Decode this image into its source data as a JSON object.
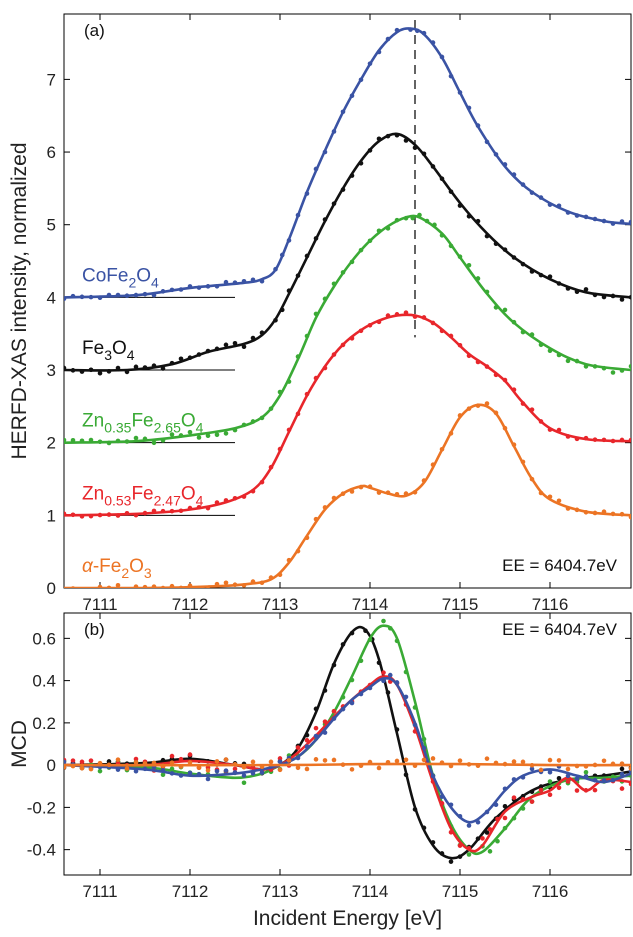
{
  "chart_data": [
    {
      "panel_label": "(a)",
      "type": "line",
      "ylabel": "HERFD-XAS intensity, normalized",
      "xlim": [
        7110.6,
        7116.9
      ],
      "ylim": [
        0,
        7.9
      ],
      "xticks": [
        7111,
        7112,
        7113,
        7114,
        7115,
        7116
      ],
      "yticks": [
        0,
        1,
        2,
        3,
        4,
        5,
        6,
        7
      ],
      "annotation": "EE = 6404.7eV",
      "vline_x": 7114.5,
      "grid": false,
      "series": [
        {
          "name_parts": [
            {
              "t": "CoFe"
            },
            {
              "t": "2",
              "sub": true
            },
            {
              "t": "O"
            },
            {
              "t": "4",
              "sub": true
            }
          ],
          "color": "#3a53a4",
          "offset": 4,
          "x": [
            7110.6,
            7111.4,
            7112.0,
            7112.6,
            7112.8,
            7112.95,
            7113.1,
            7113.3,
            7113.5,
            7113.7,
            7113.9,
            7114.1,
            7114.3,
            7114.45,
            7114.6,
            7114.8,
            7115.0,
            7115.2,
            7115.5,
            7115.8,
            7116.2,
            7116.6,
            7116.9
          ],
          "y": [
            4.0,
            4.03,
            4.13,
            4.2,
            4.25,
            4.38,
            4.8,
            5.45,
            6.02,
            6.55,
            7.0,
            7.4,
            7.65,
            7.7,
            7.62,
            7.3,
            6.82,
            6.35,
            5.8,
            5.45,
            5.18,
            5.05,
            5.01
          ]
        },
        {
          "name_parts": [
            {
              "t": "Fe"
            },
            {
              "t": "3",
              "sub": true
            },
            {
              "t": "O"
            },
            {
              "t": "4",
              "sub": true
            }
          ],
          "color": "#111111",
          "offset": 3,
          "x": [
            7110.6,
            7111.3,
            7111.8,
            7112.2,
            7112.6,
            7112.8,
            7112.95,
            7113.1,
            7113.3,
            7113.5,
            7113.7,
            7113.9,
            7114.1,
            7114.3,
            7114.5,
            7114.7,
            7115.0,
            7115.3,
            7115.6,
            7116.0,
            7116.4,
            7116.9
          ],
          "y": [
            3.0,
            3.0,
            3.08,
            3.25,
            3.36,
            3.48,
            3.7,
            4.05,
            4.55,
            5.05,
            5.5,
            5.88,
            6.15,
            6.25,
            6.1,
            5.8,
            5.3,
            4.88,
            4.55,
            4.25,
            4.07,
            4.0
          ]
        },
        {
          "name_parts": [
            {
              "t": "Zn"
            },
            {
              "t": "0.35",
              "sub": true
            },
            {
              "t": "Fe"
            },
            {
              "t": "2.65",
              "sub": true
            },
            {
              "t": "O"
            },
            {
              "t": "4",
              "sub": true
            }
          ],
          "color": "#3aaa35",
          "offset": 2,
          "x": [
            7110.6,
            7111.4,
            7112.0,
            7112.5,
            7112.8,
            7113.0,
            7113.2,
            7113.4,
            7113.6,
            7113.8,
            7114.0,
            7114.2,
            7114.4,
            7114.55,
            7114.8,
            7115.0,
            7115.3,
            7115.6,
            7116.0,
            7116.4,
            7116.9
          ],
          "y": [
            2.0,
            2.02,
            2.1,
            2.2,
            2.35,
            2.65,
            3.15,
            3.72,
            4.15,
            4.5,
            4.78,
            4.98,
            5.1,
            5.1,
            4.88,
            4.55,
            4.05,
            3.65,
            3.3,
            3.08,
            3.0
          ]
        },
        {
          "name_parts": [
            {
              "t": "Zn"
            },
            {
              "t": "0.53",
              "sub": true
            },
            {
              "t": "Fe"
            },
            {
              "t": "2.47",
              "sub": true
            },
            {
              "t": "O"
            },
            {
              "t": "4",
              "sub": true
            }
          ],
          "color": "#e8262b",
          "offset": 1,
          "x": [
            7110.6,
            7111.4,
            7112.0,
            7112.4,
            7112.7,
            7112.9,
            7113.1,
            7113.3,
            7113.5,
            7113.7,
            7113.9,
            7114.1,
            7114.3,
            7114.5,
            7114.7,
            7114.9,
            7115.1,
            7115.3,
            7115.5,
            7115.7,
            7116.0,
            7116.4,
            7116.9
          ],
          "y": [
            1.0,
            1.02,
            1.08,
            1.18,
            1.35,
            1.65,
            2.15,
            2.65,
            3.05,
            3.35,
            3.55,
            3.68,
            3.75,
            3.75,
            3.65,
            3.45,
            3.22,
            3.05,
            2.85,
            2.55,
            2.2,
            2.05,
            2.02
          ]
        },
        {
          "name_parts": [
            {
              "t": "α-Fe",
              "italic_alpha": true
            },
            {
              "t": "2",
              "sub": true
            },
            {
              "t": "O"
            },
            {
              "t": "3",
              "sub": true
            }
          ],
          "color": "#ec7424",
          "offset": 0,
          "x": [
            7110.6,
            7111.5,
            7112.2,
            7112.6,
            7112.9,
            7113.1,
            7113.3,
            7113.5,
            7113.7,
            7113.9,
            7114.0,
            7114.2,
            7114.4,
            7114.6,
            7114.8,
            7115.0,
            7115.2,
            7115.4,
            7115.6,
            7115.8,
            7116.0,
            7116.4,
            7116.9
          ],
          "y": [
            0.0,
            0.0,
            0.02,
            0.05,
            0.12,
            0.35,
            0.72,
            1.08,
            1.3,
            1.4,
            1.38,
            1.3,
            1.27,
            1.45,
            1.9,
            2.35,
            2.52,
            2.4,
            1.95,
            1.5,
            1.22,
            1.05,
            1.0
          ]
        }
      ]
    },
    {
      "panel_label": "(b)",
      "type": "line",
      "xlabel": "Incident Energy [eV]",
      "ylabel": "MCD",
      "xlim": [
        7110.6,
        7116.9
      ],
      "ylim": [
        -0.52,
        0.72
      ],
      "xticks": [
        7111,
        7112,
        7113,
        7114,
        7115,
        7116
      ],
      "yticks": [
        -0.4,
        -0.2,
        0,
        0.2,
        0.4,
        0.6
      ],
      "ytick_labels": [
        "-0.4",
        "-0.2",
        "0",
        "0.2",
        "0.4",
        "0.6"
      ],
      "annotation": "EE = 6404.7eV",
      "grid": false,
      "series": [
        {
          "color": "#111111",
          "x": [
            7110.6,
            7111.5,
            7112.0,
            7112.5,
            7112.8,
            7113.0,
            7113.2,
            7113.4,
            7113.6,
            7113.8,
            7113.95,
            7114.1,
            7114.3,
            7114.5,
            7114.7,
            7114.9,
            7115.1,
            7115.4,
            7115.8,
            7116.2,
            7116.6,
            7116.9
          ],
          "y": [
            0.0,
            0.01,
            0.03,
            0.0,
            -0.02,
            0.0,
            0.08,
            0.25,
            0.48,
            0.63,
            0.64,
            0.5,
            0.15,
            -0.2,
            -0.38,
            -0.44,
            -0.4,
            -0.25,
            -0.12,
            -0.07,
            -0.05,
            -0.03
          ]
        },
        {
          "color": "#3aaa35",
          "x": [
            7110.6,
            7111.5,
            7112.0,
            7112.5,
            7112.8,
            7113.0,
            7113.2,
            7113.4,
            7113.6,
            7113.8,
            7114.0,
            7114.15,
            7114.3,
            7114.5,
            7114.7,
            7114.9,
            7115.1,
            7115.25,
            7115.5,
            7115.8,
            7116.2,
            7116.6,
            7116.9
          ],
          "y": [
            0.0,
            -0.01,
            -0.04,
            -0.06,
            -0.04,
            0.0,
            0.04,
            0.12,
            0.25,
            0.42,
            0.6,
            0.66,
            0.6,
            0.3,
            -0.05,
            -0.28,
            -0.4,
            -0.41,
            -0.3,
            -0.15,
            -0.07,
            -0.06,
            -0.05
          ]
        },
        {
          "color": "#e8262b",
          "x": [
            7110.6,
            7111.5,
            7112.0,
            7112.5,
            7112.8,
            7113.0,
            7113.2,
            7113.4,
            7113.6,
            7113.8,
            7114.0,
            7114.15,
            7114.3,
            7114.5,
            7114.7,
            7114.9,
            7115.1,
            7115.25,
            7115.5,
            7115.8,
            7116.0,
            7116.2,
            7116.4,
            7116.6,
            7116.9
          ],
          "y": [
            0.0,
            0.0,
            0.02,
            0.0,
            -0.02,
            0.0,
            0.06,
            0.14,
            0.23,
            0.31,
            0.38,
            0.42,
            0.38,
            0.18,
            -0.08,
            -0.3,
            -0.4,
            -0.38,
            -0.22,
            -0.15,
            -0.12,
            -0.06,
            -0.12,
            -0.07,
            -0.08
          ]
        },
        {
          "color": "#3a53a4",
          "x": [
            7110.6,
            7111.5,
            7112.0,
            7112.5,
            7112.8,
            7113.0,
            7113.2,
            7113.4,
            7113.6,
            7113.8,
            7114.0,
            7114.15,
            7114.3,
            7114.5,
            7114.7,
            7114.9,
            7115.1,
            7115.3,
            7115.5,
            7115.7,
            7116.0,
            7116.3,
            7116.6,
            7116.9
          ],
          "y": [
            0.0,
            -0.02,
            -0.05,
            -0.04,
            -0.02,
            0.0,
            0.04,
            0.12,
            0.22,
            0.31,
            0.37,
            0.41,
            0.38,
            0.2,
            -0.05,
            -0.2,
            -0.27,
            -0.22,
            -0.12,
            -0.05,
            -0.02,
            -0.05,
            -0.08,
            -0.04
          ]
        },
        {
          "color": "#ec7424",
          "x": [
            7110.6,
            7113.0,
            7114.0,
            7115.0,
            7116.0,
            7116.9
          ],
          "y": [
            0.0,
            0.0,
            0.005,
            0.005,
            0.0,
            0.0
          ]
        }
      ]
    }
  ]
}
